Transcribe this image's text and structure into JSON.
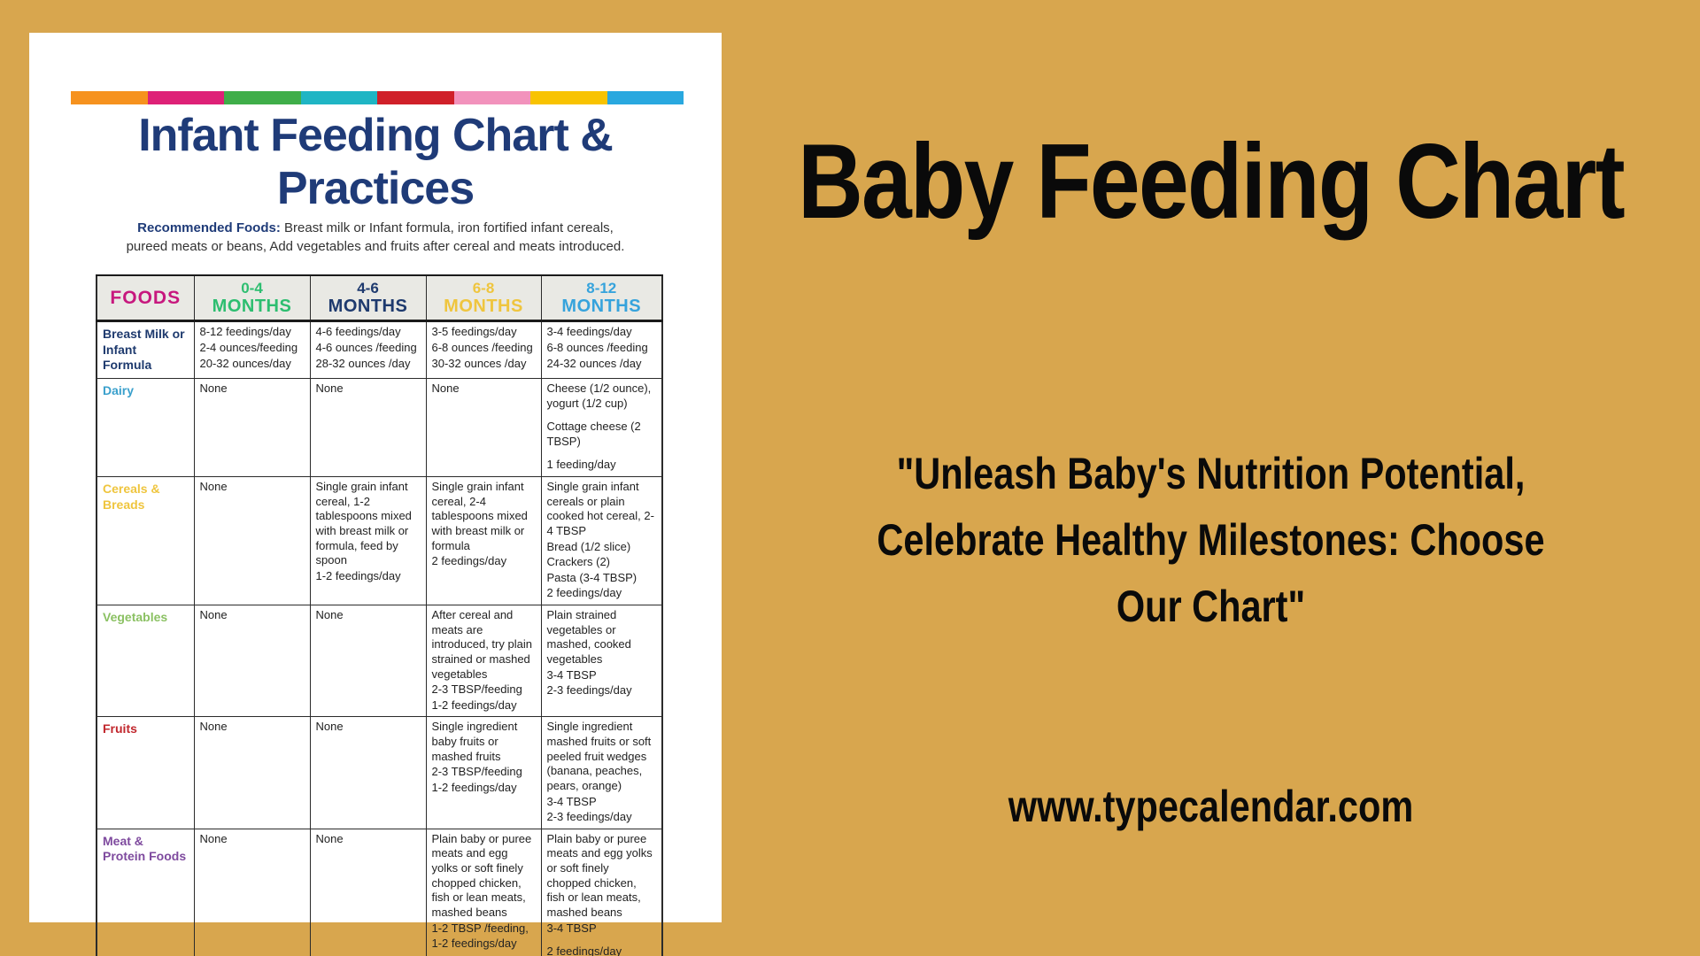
{
  "page": {
    "background_color": "#D8A64E"
  },
  "document": {
    "stripe_colors": [
      "#F6921E",
      "#DE2177",
      "#3FAE49",
      "#1FB5C4",
      "#D02029",
      "#F292BC",
      "#F8C301",
      "#29A8DF"
    ],
    "title_color": "#1F3B78",
    "title_line1": "Infant Feeding Chart &",
    "title_line2": "Practices",
    "note_label": "Recommended Foods:",
    "note_text": " Breast milk or Infant formula, iron fortified infant cereals, pureed meats or beans, Add vegetables and fruits after cereal and meats introduced.",
    "table": {
      "header": [
        {
          "line1": "FOODS",
          "line2": "",
          "color": "#C7187E"
        },
        {
          "line1": "0-4",
          "line2": "MONTHS",
          "color": "#2DBE70"
        },
        {
          "line1": "4-6",
          "line2": "MONTHS",
          "color": "#1E3A6E"
        },
        {
          "line1": "6-8",
          "line2": "MONTHS",
          "color": "#EFC53E"
        },
        {
          "line1": "8-12",
          "line2": "MONTHS",
          "color": "#36A3DC"
        }
      ],
      "rows": [
        {
          "label": "Breast Milk or Infant Formula",
          "label_color": "#1E3A6E",
          "cells": [
            [
              "8-12 feedings/day",
              "2-4 ounces/feeding",
              "20-32 ounces/day"
            ],
            [
              "4-6 feedings/day",
              "4-6 ounces /feeding",
              "28-32 ounces /day"
            ],
            [
              "3-5 feedings/day",
              "6-8 ounces /feeding",
              "30-32 ounces /day"
            ],
            [
              "3-4 feedings/day",
              "6-8 ounces /feeding",
              "24-32 ounces /day"
            ]
          ]
        },
        {
          "label": "Dairy",
          "label_color": "#3AA0CC",
          "cells": [
            [
              "None"
            ],
            [
              "None"
            ],
            [
              "None"
            ],
            [
              "Cheese (1/2 ounce), yogurt (1/2 cup)",
              "",
              "Cottage cheese (2 TBSP)",
              "",
              "1 feeding/day"
            ]
          ]
        },
        {
          "label": "Cereals & Breads",
          "label_color": "#EFC53E",
          "cells": [
            [
              "None"
            ],
            [
              "Single grain infant cereal, 1-2 tablespoons mixed with breast milk or formula, feed by spoon",
              "1-2 feedings/day"
            ],
            [
              "Single grain infant cereal, 2-4 tablespoons mixed with breast milk or formula",
              "2 feedings/day"
            ],
            [
              "Single grain infant cereals or plain cooked hot cereal, 2-4 TBSP",
              "Bread (1/2 slice)",
              "Crackers (2)",
              "Pasta (3-4 TBSP)",
              "2 feedings/day"
            ]
          ]
        },
        {
          "label": "Vegetables",
          "label_color": "#8BC163",
          "cells": [
            [
              "None"
            ],
            [
              "None"
            ],
            [
              "After cereal and meats are introduced, try plain strained or mashed vegetables",
              "2-3  TBSP/feeding",
              "1-2 feedings/day"
            ],
            [
              "Plain strained vegetables or mashed, cooked vegetables",
              "3-4 TBSP",
              "2-3 feedings/day"
            ]
          ]
        },
        {
          "label": "Fruits",
          "label_color": "#C1272D",
          "cells": [
            [
              "None"
            ],
            [
              "None"
            ],
            [
              "Single ingredient baby fruits or mashed fruits",
              "2-3  TBSP/feeding",
              "1-2 feedings/day"
            ],
            [
              "Single ingredient mashed fruits or soft peeled fruit wedges (banana, peaches, pears, orange)",
              "3-4 TBSP",
              "2-3 feedings/day"
            ]
          ]
        },
        {
          "label": "Meat & Protein Foods",
          "label_color": "#7E4A9E",
          "cells": [
            [
              "None"
            ],
            [
              "None"
            ],
            [
              "Plain baby or puree meats and egg yolks or soft finely chopped chicken, fish or lean meats, mashed beans",
              "1-2 TBSP /feeding,",
              "1-2 feedings/day"
            ],
            [
              "Plain baby or puree meats and egg yolks or soft finely chopped chicken, fish or lean meats, mashed beans",
              "3-4 TBSP",
              "",
              "2 feedings/day"
            ]
          ]
        }
      ]
    }
  },
  "right": {
    "title": "Baby Feeding Chart",
    "quote_lines": [
      "\"Unleash Baby's Nutrition Potential,",
      "Celebrate Healthy Milestones: Choose",
      "Our Chart\""
    ],
    "url": "www.typecalendar.com"
  }
}
